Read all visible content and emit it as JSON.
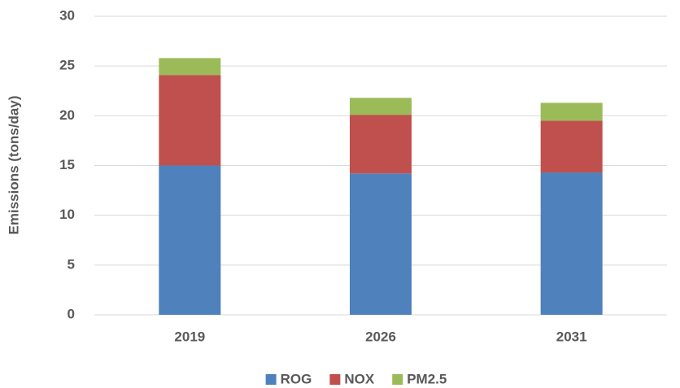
{
  "chart_data": {
    "type": "stacked_bar",
    "y_label": "Emissions (tons/day)",
    "categories": [
      "2019",
      "2026",
      "2031"
    ],
    "series": [
      {
        "name": "ROG",
        "color": "#4f81bd",
        "values": [
          15.0,
          14.2,
          14.3
        ]
      },
      {
        "name": "NOX",
        "color": "#c0504d",
        "values": [
          9.1,
          5.9,
          5.2
        ]
      },
      {
        "name": "PM2.5",
        "color": "#9bbb59",
        "values": [
          1.7,
          1.7,
          1.8
        ]
      }
    ],
    "ylim": [
      0,
      30
    ],
    "yticks": [
      0,
      5,
      10,
      15,
      20,
      25,
      30
    ],
    "grid": true,
    "legend": "bottom"
  }
}
